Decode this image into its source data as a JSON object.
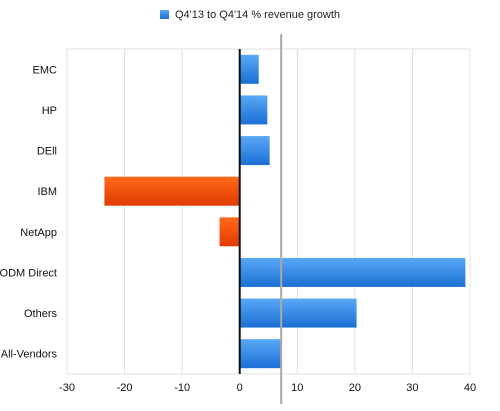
{
  "legend": {
    "label": "Q4'13 to Q4'14  % revenue growth"
  },
  "colors": {
    "positive_top": "#5aa8f5",
    "positive_bottom": "#1a6fd6",
    "negative_top": "#ff6a1a",
    "negative_bottom": "#e23a00",
    "gridline": "#e0e0e0",
    "axis": "#111111",
    "marker_line": "#a8a8a8"
  },
  "chart_data": {
    "type": "bar",
    "orientation": "horizontal",
    "categories": [
      "EMC",
      "HP",
      "DEll",
      "IBM",
      "NetApp",
      "ODM Direct",
      "Others",
      "All-Vendors"
    ],
    "series": [
      {
        "name": "Q4'13 to Q4'14  % revenue growth",
        "values": [
          3.3,
          4.8,
          5.2,
          -23.5,
          -3.5,
          39.2,
          20.3,
          7.2
        ]
      }
    ],
    "xlim": [
      -30,
      40
    ],
    "xticks": [
      "-30",
      "-20",
      "-10",
      "0",
      "10",
      "20",
      "30",
      "40"
    ],
    "reference_line": 7.2,
    "grid": "vertical gridlines",
    "legend_position": "top-center"
  }
}
